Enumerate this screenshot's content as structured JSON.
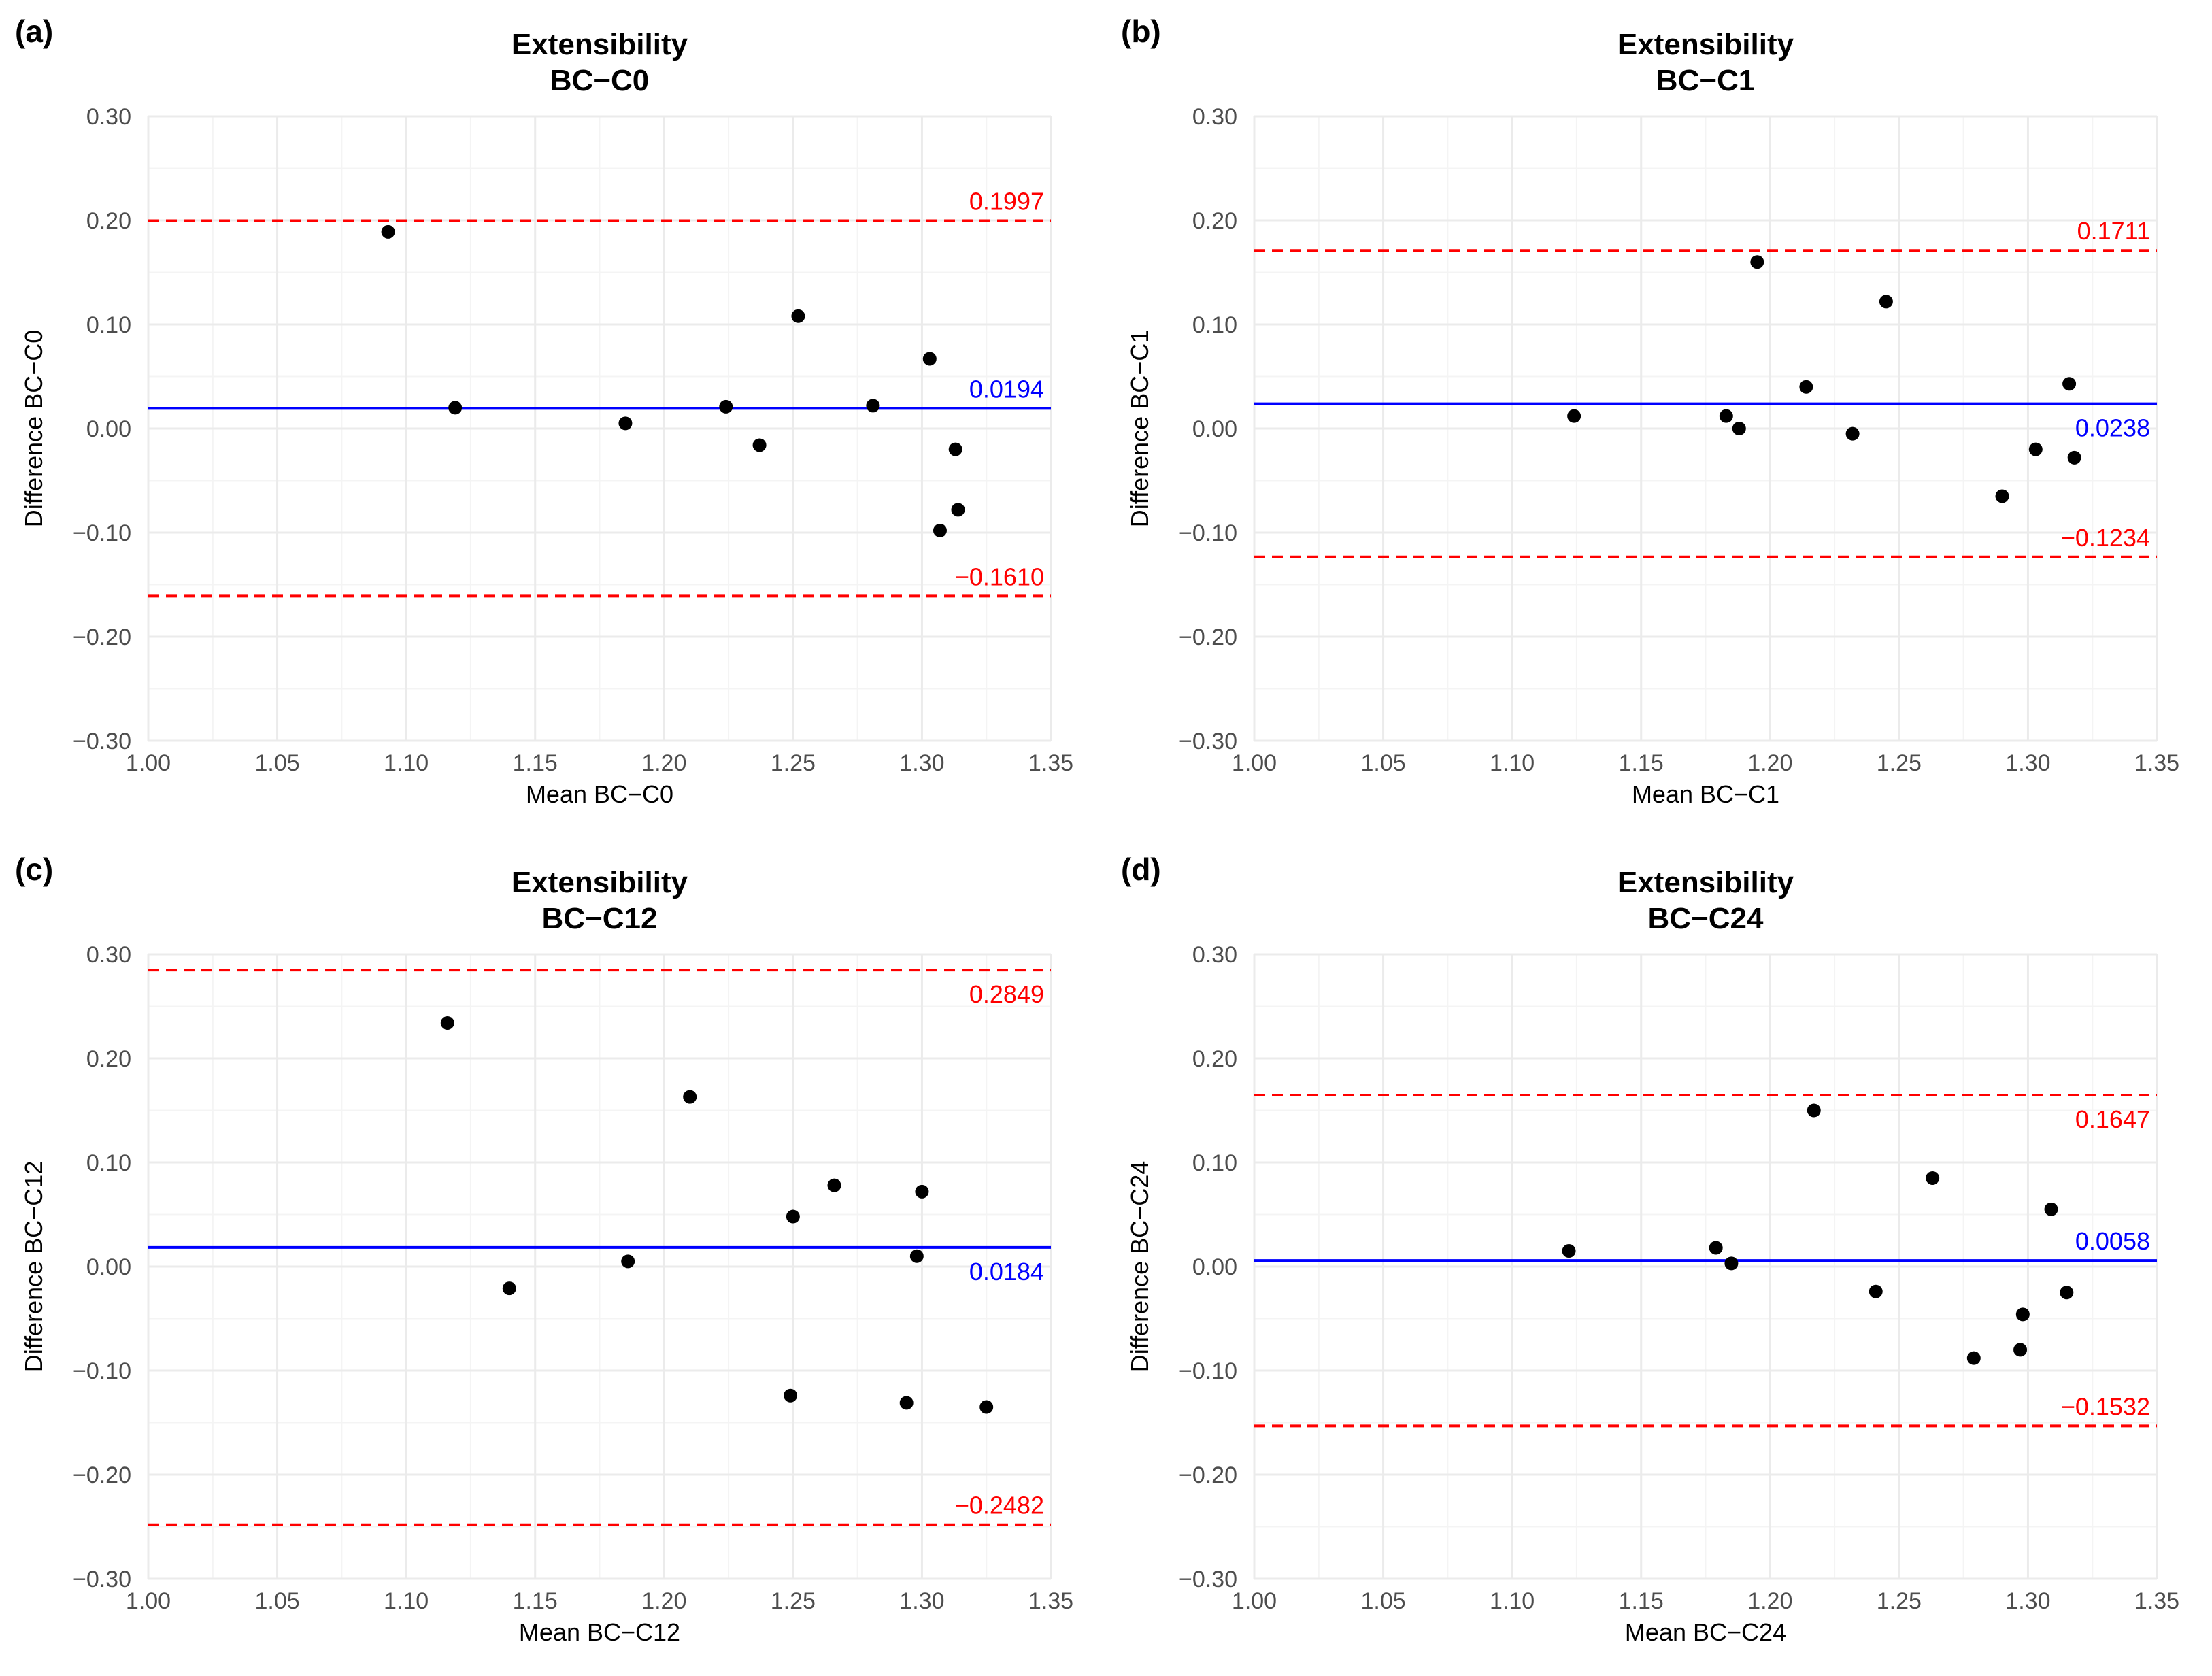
{
  "chart_data": [
    {
      "type": "scatter",
      "panel_label": "(a)",
      "title": "Extensibility",
      "subtitle": "BC−C0",
      "xlabel": "Mean BC−C0",
      "ylabel": "Difference BC−C0",
      "xlim": [
        1.0,
        1.35
      ],
      "ylim": [
        -0.3,
        0.3
      ],
      "x_ticks": [
        "1.00",
        "1.05",
        "1.10",
        "1.15",
        "1.20",
        "1.25",
        "1.30",
        "1.35"
      ],
      "y_ticks": [
        "0.30",
        "0.20",
        "0.10",
        "0.00",
        "−0.10",
        "−0.20",
        "−0.30"
      ],
      "mean_diff": 0.0194,
      "upper_loa": 0.1997,
      "lower_loa": -0.161,
      "mean_label": "0.0194",
      "upper_label": "0.1997",
      "lower_label": "−0.1610",
      "mean_label_pos": "above",
      "upper_label_pos": "above",
      "lower_label_pos": "above",
      "points": [
        [
          1.093,
          0.189
        ],
        [
          1.119,
          0.02
        ],
        [
          1.185,
          0.005
        ],
        [
          1.224,
          0.021
        ],
        [
          1.237,
          -0.016
        ],
        [
          1.252,
          0.108
        ],
        [
          1.281,
          0.022
        ],
        [
          1.303,
          0.067
        ],
        [
          1.313,
          -0.02
        ],
        [
          1.314,
          -0.078
        ],
        [
          1.307,
          -0.098
        ]
      ]
    },
    {
      "type": "scatter",
      "panel_label": "(b)",
      "title": "Extensibility",
      "subtitle": "BC−C1",
      "xlabel": "Mean BC−C1",
      "ylabel": "Difference BC−C1",
      "xlim": [
        1.0,
        1.35
      ],
      "ylim": [
        -0.3,
        0.3
      ],
      "x_ticks": [
        "1.00",
        "1.05",
        "1.10",
        "1.15",
        "1.20",
        "1.25",
        "1.30",
        "1.35"
      ],
      "y_ticks": [
        "0.30",
        "0.20",
        "0.10",
        "0.00",
        "−0.10",
        "−0.20",
        "−0.30"
      ],
      "mean_diff": 0.0238,
      "upper_loa": 0.1711,
      "lower_loa": -0.1234,
      "mean_label": "0.0238",
      "upper_label": "0.1711",
      "lower_label": "−0.1234",
      "mean_label_pos": "below",
      "upper_label_pos": "above",
      "lower_label_pos": "above",
      "points": [
        [
          1.124,
          0.012
        ],
        [
          1.183,
          0.012
        ],
        [
          1.188,
          0.0
        ],
        [
          1.195,
          0.16
        ],
        [
          1.214,
          0.04
        ],
        [
          1.232,
          -0.005
        ],
        [
          1.245,
          0.122
        ],
        [
          1.29,
          -0.065
        ],
        [
          1.303,
          -0.02
        ],
        [
          1.316,
          0.043
        ],
        [
          1.318,
          -0.028
        ]
      ]
    },
    {
      "type": "scatter",
      "panel_label": "(c)",
      "title": "Extensibility",
      "subtitle": "BC−C12",
      "xlabel": "Mean BC−C12",
      "ylabel": "Difference BC−C12",
      "xlim": [
        1.0,
        1.35
      ],
      "ylim": [
        -0.3,
        0.3
      ],
      "x_ticks": [
        "1.00",
        "1.05",
        "1.10",
        "1.15",
        "1.20",
        "1.25",
        "1.30",
        "1.35"
      ],
      "y_ticks": [
        "0.30",
        "0.20",
        "0.10",
        "0.00",
        "−0.10",
        "−0.20",
        "−0.30"
      ],
      "mean_diff": 0.0184,
      "upper_loa": 0.2849,
      "lower_loa": -0.2482,
      "mean_label": "0.0184",
      "upper_label": "0.2849",
      "lower_label": "−0.2482",
      "mean_label_pos": "below",
      "upper_label_pos": "below",
      "lower_label_pos": "above",
      "points": [
        [
          1.116,
          0.234
        ],
        [
          1.14,
          -0.021
        ],
        [
          1.186,
          0.005
        ],
        [
          1.21,
          0.163
        ],
        [
          1.25,
          0.048
        ],
        [
          1.266,
          0.078
        ],
        [
          1.3,
          0.072
        ],
        [
          1.298,
          0.01
        ],
        [
          1.249,
          -0.124
        ],
        [
          1.294,
          -0.131
        ],
        [
          1.325,
          -0.135
        ]
      ]
    },
    {
      "type": "scatter",
      "panel_label": "(d)",
      "title": "Extensibility",
      "subtitle": "BC−C24",
      "xlabel": "Mean BC−C24",
      "ylabel": "Difference BC−C24",
      "xlim": [
        1.0,
        1.35
      ],
      "ylim": [
        -0.3,
        0.3
      ],
      "x_ticks": [
        "1.00",
        "1.05",
        "1.10",
        "1.15",
        "1.20",
        "1.25",
        "1.30",
        "1.35"
      ],
      "y_ticks": [
        "0.30",
        "0.20",
        "0.10",
        "0.00",
        "−0.10",
        "−0.20",
        "−0.30"
      ],
      "mean_diff": 0.0058,
      "upper_loa": 0.1647,
      "lower_loa": -0.1532,
      "mean_label": "0.0058",
      "upper_label": "0.1647",
      "lower_label": "−0.1532",
      "mean_label_pos": "above",
      "upper_label_pos": "below",
      "lower_label_pos": "above",
      "points": [
        [
          1.122,
          0.015
        ],
        [
          1.179,
          0.018
        ],
        [
          1.185,
          0.003
        ],
        [
          1.217,
          0.15
        ],
        [
          1.241,
          -0.024
        ],
        [
          1.263,
          0.085
        ],
        [
          1.279,
          -0.088
        ],
        [
          1.297,
          -0.08
        ],
        [
          1.298,
          -0.046
        ],
        [
          1.309,
          0.055
        ],
        [
          1.315,
          -0.025
        ]
      ]
    }
  ],
  "colors": {
    "mean_line": "#0000ff",
    "loa_line": "#ff0000",
    "points": "#000000",
    "grid": "#ebebeb"
  }
}
